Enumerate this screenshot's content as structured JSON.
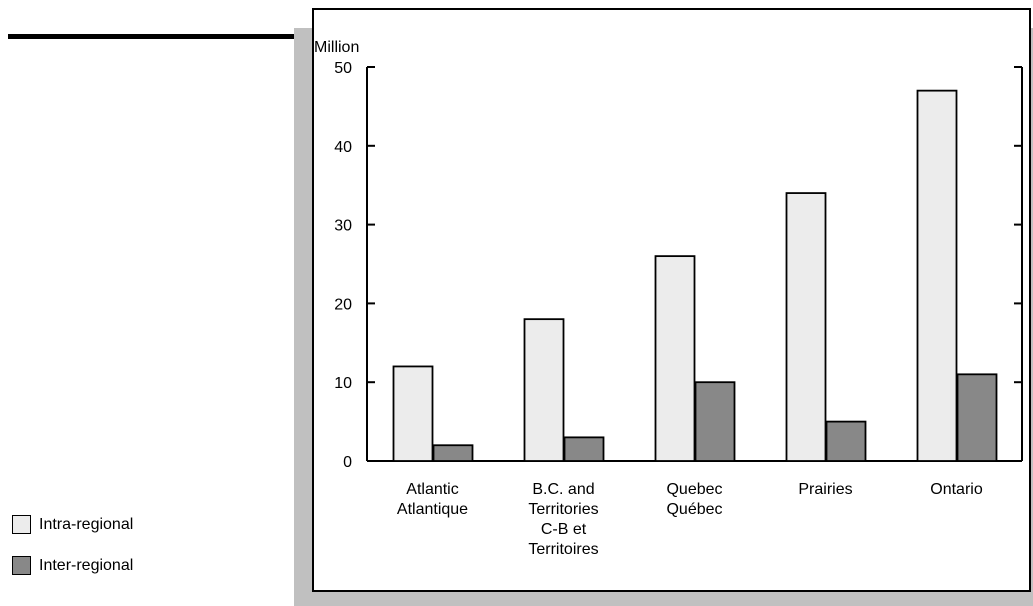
{
  "chart_data": {
    "type": "bar",
    "ylabel": "Million",
    "ylim": [
      0,
      50
    ],
    "yticks": [
      0,
      10,
      20,
      30,
      40,
      50
    ],
    "categories": [
      [
        "Atlantic",
        "Atlantique"
      ],
      [
        "B.C. and",
        "Territories",
        "C-B et",
        "Territoires"
      ],
      [
        "Quebec",
        "Québec"
      ],
      [
        "Prairies"
      ],
      [
        "Ontario"
      ]
    ],
    "series": [
      {
        "name": "Intra-regional",
        "color": "#ececec",
        "values": [
          12,
          18,
          26,
          34,
          47
        ]
      },
      {
        "name": "Inter-regional",
        "color": "#888888",
        "values": [
          2,
          3,
          10,
          5,
          11
        ]
      }
    ],
    "grid": false,
    "legend_position": "bottom-left"
  }
}
